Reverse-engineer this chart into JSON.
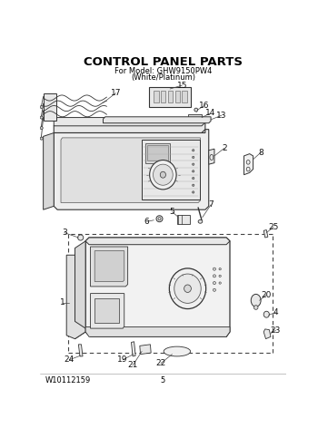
{
  "title": "CONTROL PANEL PARTS",
  "subtitle_line1": "For Model: GHW9150PW4",
  "subtitle_line2": "(White/Platinum)",
  "footer_left": "W10112159",
  "footer_center": "5",
  "bg_color": "#ffffff",
  "title_fontsize": 9.5,
  "subtitle_fontsize": 6,
  "footer_fontsize": 6,
  "line_color": "#333333",
  "label_fontsize": 6.5
}
